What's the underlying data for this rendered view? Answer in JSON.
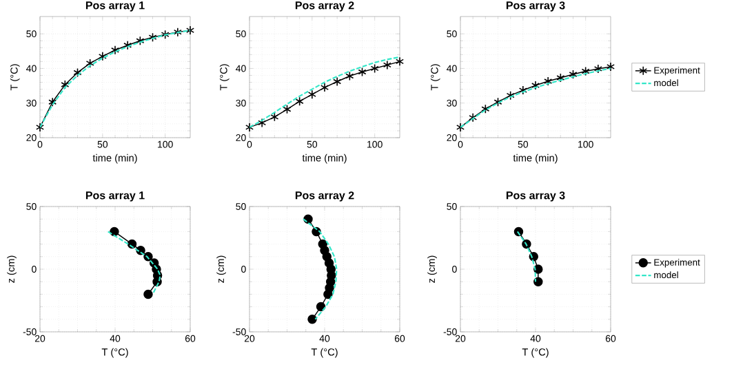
{
  "chart_data": [
    {
      "type": "line",
      "title": "Pos array 1",
      "xlabel": "time (min)",
      "ylabel": "T (°C)",
      "x": [
        0,
        10,
        20,
        30,
        40,
        50,
        60,
        70,
        80,
        90,
        100,
        110,
        120
      ],
      "xlim": [
        0,
        120
      ],
      "ylim": [
        20,
        55
      ],
      "xticks": [
        0,
        50,
        100
      ],
      "yticks": [
        20,
        30,
        40,
        50
      ],
      "grid": true,
      "series": [
        {
          "color": "#000000",
          "marker": "cross",
          "line_style": "solid",
          "values": [
            23,
            30.3,
            35.3,
            38.8,
            41.5,
            43.5,
            45.3,
            46.7,
            48,
            49,
            49.8,
            50.5,
            51
          ]
        },
        {
          "color": "#33e6c8",
          "marker": "none",
          "line_style": "dashed",
          "values": [
            23,
            29.5,
            34.5,
            38,
            40.8,
            43,
            44.8,
            46.3,
            47.6,
            48.7,
            49.7,
            50.4,
            51
          ]
        }
      ]
    },
    {
      "type": "line",
      "title": "Pos array 2",
      "xlabel": "time (min)",
      "ylabel": "T (°C)",
      "x": [
        0,
        10,
        20,
        30,
        40,
        50,
        60,
        70,
        80,
        90,
        100,
        110,
        120
      ],
      "xlim": [
        0,
        120
      ],
      "ylim": [
        20,
        55
      ],
      "xticks": [
        0,
        50,
        100
      ],
      "yticks": [
        20,
        30,
        40,
        50
      ],
      "grid": true,
      "series": [
        {
          "color": "#000000",
          "marker": "cross",
          "line_style": "solid",
          "values": [
            23,
            24.3,
            26,
            28.2,
            30.5,
            32.5,
            34.5,
            36.2,
            37.8,
            39,
            40,
            41,
            42
          ]
        },
        {
          "color": "#33e6c8",
          "marker": "none",
          "line_style": "dashed",
          "values": [
            23,
            25,
            27.3,
            29.7,
            32,
            34,
            36,
            37.7,
            39.2,
            40.5,
            41.7,
            42.6,
            43.3
          ]
        }
      ]
    },
    {
      "type": "line",
      "title": "Pos array 3",
      "xlabel": "time (min)",
      "ylabel": "T (°C)",
      "x": [
        0,
        10,
        20,
        30,
        40,
        50,
        60,
        70,
        80,
        90,
        100,
        110,
        120
      ],
      "xlim": [
        0,
        120
      ],
      "ylim": [
        20,
        55
      ],
      "xticks": [
        0,
        50,
        100
      ],
      "yticks": [
        20,
        30,
        40,
        50
      ],
      "grid": true,
      "legend": "right",
      "series": [
        {
          "name": "Experiment",
          "color": "#000000",
          "marker": "cross",
          "line_style": "solid",
          "values": [
            23,
            25.8,
            28.3,
            30.3,
            32.2,
            33.7,
            35.1,
            36.3,
            37.3,
            38.3,
            39.2,
            39.9,
            40.5
          ]
        },
        {
          "name": "model",
          "color": "#33e6c8",
          "marker": "none",
          "line_style": "dashed",
          "values": [
            23,
            25.5,
            28,
            30,
            31.8,
            33.2,
            34.5,
            35.6,
            36.6,
            37.6,
            38.5,
            39.3,
            40
          ]
        }
      ]
    },
    {
      "type": "line",
      "title": "Pos array 1",
      "xlabel": "T (°C)",
      "ylabel": "z (cm)",
      "xlim": [
        20,
        60
      ],
      "ylim": [
        -50,
        50
      ],
      "xticks": [
        20,
        40,
        60
      ],
      "yticks": [
        -50,
        0,
        50
      ],
      "grid": true,
      "series": [
        {
          "color": "#000000",
          "marker": "circle",
          "line_style": "solid",
          "x": [
            39.8,
            44.5,
            46.8,
            48.8,
            50.4,
            51,
            51.3,
            51.2,
            48.8
          ],
          "values": [
            30,
            20,
            15,
            10,
            5,
            0,
            -5,
            -10,
            -20
          ]
        },
        {
          "color": "#33e6c8",
          "marker": "none",
          "line_style": "dashed",
          "x": [
            38.1,
            43.5,
            48.5,
            51.3,
            52,
            51.7,
            50
          ],
          "values": [
            30,
            20,
            10,
            0,
            -5,
            -10,
            -20
          ]
        }
      ]
    },
    {
      "type": "line",
      "title": "Pos array 2",
      "xlabel": "T (°C)",
      "ylabel": "z (cm)",
      "xlim": [
        20,
        60
      ],
      "ylim": [
        -50,
        50
      ],
      "xticks": [
        20,
        40,
        60
      ],
      "yticks": [
        -50,
        0,
        50
      ],
      "grid": true,
      "series": [
        {
          "color": "#000000",
          "marker": "circle",
          "line_style": "solid",
          "x": [
            35.6,
            37.8,
            39.5,
            40,
            40.6,
            41.2,
            41.7,
            41.8,
            41.6,
            41.3,
            40.9,
            39,
            36.7
          ],
          "values": [
            40,
            30,
            20,
            15,
            10,
            5,
            0,
            -5,
            -10,
            -15,
            -20,
            -30,
            -40
          ]
        },
        {
          "color": "#33e6c8",
          "marker": "none",
          "line_style": "dashed",
          "x": [
            34.3,
            38.7,
            41,
            42.6,
            43.2,
            43,
            42.2,
            40.3,
            37.5
          ],
          "values": [
            40,
            30,
            20,
            10,
            0,
            -10,
            -20,
            -30,
            -40
          ]
        }
      ]
    },
    {
      "type": "line",
      "title": "Pos array 3",
      "xlabel": "T (°C)",
      "ylabel": "z (cm)",
      "xlim": [
        20,
        60
      ],
      "ylim": [
        -50,
        50
      ],
      "xticks": [
        20,
        40,
        60
      ],
      "yticks": [
        -50,
        0,
        50
      ],
      "grid": true,
      "legend": "right",
      "series": [
        {
          "name": "Experiment",
          "color": "#000000",
          "marker": "circle",
          "line_style": "solid",
          "x": [
            35.5,
            37.6,
            39.5,
            40.7,
            40.7
          ],
          "values": [
            30,
            20,
            10,
            0,
            -10
          ]
        },
        {
          "name": "model",
          "color": "#33e6c8",
          "marker": "none",
          "line_style": "dashed",
          "x": [
            35.2,
            37.5,
            39,
            39.9,
            40
          ],
          "values": [
            30,
            20,
            10,
            0,
            -10
          ]
        }
      ]
    }
  ]
}
